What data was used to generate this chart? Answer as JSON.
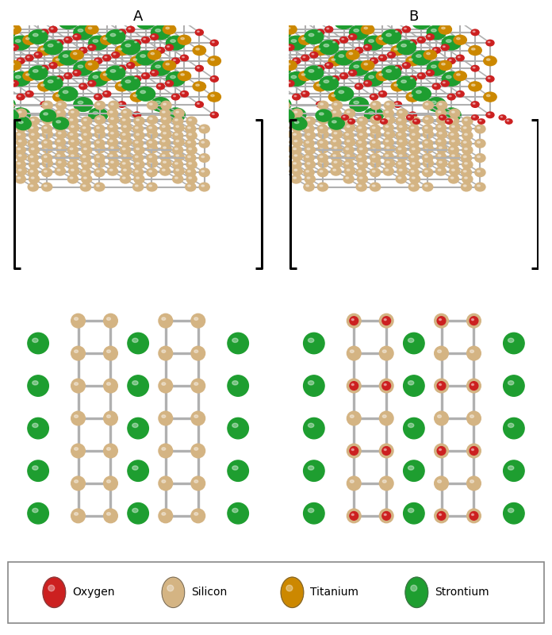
{
  "title_A": "A",
  "title_B": "B",
  "oxygen_color": "#cc2020",
  "silicon_color": "#d4b483",
  "titanium_color": "#cc8800",
  "strontium_color": "#1e9e30",
  "bond_color": "#b0b0b0",
  "background_color": "#ffffff",
  "legend_items": [
    {
      "label": "Oxygen",
      "color": "#cc2020"
    },
    {
      "label": "Silicon",
      "color": "#d4b483"
    },
    {
      "label": "Titanium",
      "color": "#cc8800"
    },
    {
      "label": "Strontium",
      "color": "#1e9e30"
    }
  ],
  "fig_width": 6.96,
  "fig_height": 8.0,
  "dpi": 100
}
